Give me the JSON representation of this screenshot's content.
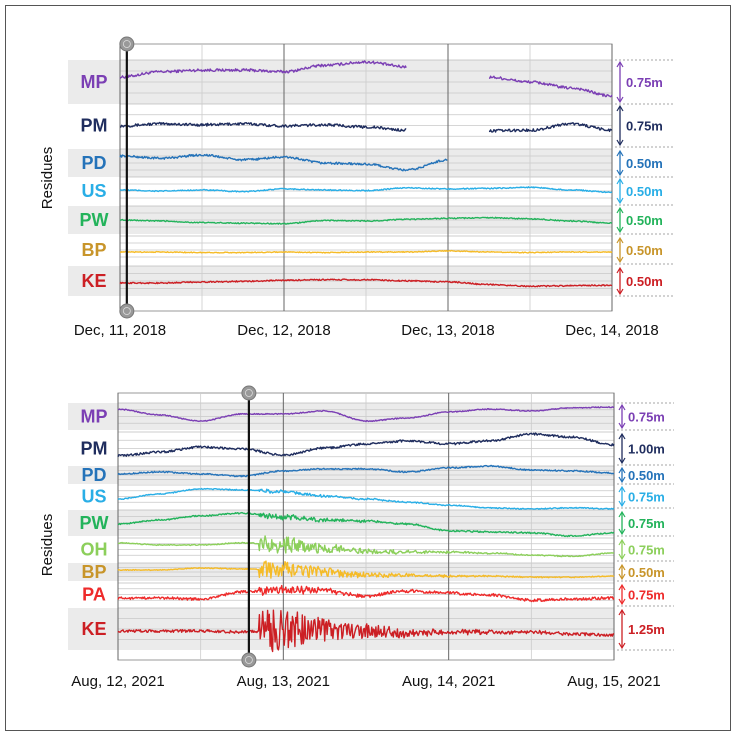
{
  "chart_data": [
    {
      "type": "line",
      "ylabel": "Residues",
      "x_ticks": [
        "Dec, 11, 2018",
        "Dec, 12, 2018",
        "Dec, 13, 2018",
        "Dec, 14, 2018"
      ],
      "sample_times": [
        "2018-12-11T00",
        "2018-12-11T06",
        "2018-12-11T12",
        "2018-12-11T18",
        "2018-12-12T00",
        "2018-12-12T06",
        "2018-12-12T12",
        "2018-12-12T18",
        "2018-12-13T00",
        "2018-12-13T06",
        "2018-12-13T12",
        "2018-12-13T18",
        "2018-12-14T00"
      ],
      "marker_time": "2018-12-11T01",
      "grid": true,
      "series": [
        {
          "name": "MP",
          "scale_label": "0.75m",
          "color": "#7b3fb4",
          "values": [
            0.09,
            0.19,
            0.22,
            0.22,
            0.19,
            0.31,
            0.37,
            0.28,
            null,
            0.09,
            0,
            -0.11,
            -0.26
          ]
        },
        {
          "name": "PM",
          "scale_label": "0.75m",
          "color": "#1f2d5e",
          "values": [
            0.02,
            0.06,
            0.04,
            0.06,
            0.02,
            0.04,
            0,
            -0.06,
            null,
            -0.07,
            -0.06,
            0.06,
            -0.06
          ]
        },
        {
          "name": "PD",
          "scale_label": "0.50m",
          "color": "#2573b9",
          "values": [
            0.11,
            0.07,
            0.13,
            0.04,
            0.09,
            -0.02,
            -0.04,
            -0.15,
            0.04,
            null,
            null,
            null,
            null
          ]
        },
        {
          "name": "US",
          "scale_label": "0.50m",
          "color": "#29aee6",
          "values": [
            0,
            -0.02,
            0,
            -0.03,
            0.02,
            0,
            -0.01,
            0.04,
            0.02,
            0.03,
            0.05,
            0,
            -0.04
          ]
        },
        {
          "name": "PW",
          "scale_label": "0.50m",
          "color": "#23b35b",
          "values": [
            0.02,
            0,
            -0.03,
            -0.04,
            -0.05,
            0.01,
            0,
            0.03,
            0.05,
            0.06,
            0.04,
            0,
            -0.04
          ]
        },
        {
          "name": "BP",
          "scale_label": "0.50m",
          "color": "#f5bb27",
          "label_color": "#c8952a",
          "values": [
            0,
            0,
            -0.01,
            -0.01,
            0,
            -0.01,
            0,
            0,
            0.02,
            0,
            -0.01,
            0,
            0
          ]
        },
        {
          "name": "KE",
          "scale_label": "0.50m",
          "color": "#cc1f24",
          "values": [
            0,
            0,
            0.02,
            0.03,
            0.05,
            0.06,
            0.06,
            0.04,
            0.02,
            -0.03,
            -0.06,
            -0.05,
            -0.04
          ]
        }
      ]
    },
    {
      "type": "line",
      "ylabel": "Residues",
      "x_ticks": [
        "Aug, 12, 2021",
        "Aug, 13, 2021",
        "Aug, 14, 2021",
        "Aug, 15, 2021"
      ],
      "sample_times": [
        "2021-08-12T00",
        "2021-08-12T06",
        "2021-08-12T12",
        "2021-08-12T18",
        "2021-08-13T00",
        "2021-08-13T06",
        "2021-08-13T12",
        "2021-08-13T18",
        "2021-08-14T00",
        "2021-08-14T06",
        "2021-08-14T12",
        "2021-08-14T18",
        "2021-08-15T00"
      ],
      "marker_time": "2021-08-12T19",
      "grid": true,
      "series": [
        {
          "name": "MP",
          "scale_label": "0.75m",
          "color": "#7b3fb4",
          "values": [
            0.2,
            0.03,
            -0.15,
            0.06,
            0.06,
            0.15,
            -0.15,
            -0.06,
            0.12,
            0.2,
            0.15,
            0.24,
            0.26
          ]
        },
        {
          "name": "PM",
          "scale_label": "1.00m",
          "color": "#1f2d5e",
          "values": [
            -0.2,
            -0.09,
            0.06,
            0,
            -0.18,
            0.03,
            0.15,
            0.24,
            0.15,
            0.24,
            0.44,
            0.35,
            0.12
          ]
        },
        {
          "name": "PD",
          "scale_label": "0.50m",
          "color": "#2573b9",
          "values": [
            0.03,
            0.09,
            0.03,
            -0.03,
            0.12,
            0.18,
            0.18,
            0.09,
            0.21,
            0.26,
            0.15,
            0.12,
            0.06
          ]
        },
        {
          "name": "US",
          "scale_label": "0.75m",
          "color": "#29aee6",
          "values": [
            -0.06,
            0.09,
            0.24,
            0.21,
            0.15,
            0.03,
            -0.06,
            -0.15,
            -0.24,
            -0.32,
            -0.35,
            -0.32,
            -0.35
          ]
        },
        {
          "name": "PW",
          "scale_label": "0.75m",
          "color": "#23b35b",
          "values": [
            -0.06,
            0.06,
            0.18,
            0.26,
            0.15,
            0.06,
            0.03,
            -0.06,
            -0.26,
            -0.29,
            -0.32,
            -0.41,
            -0.32
          ]
        },
        {
          "name": "OH",
          "scale_label": "0.75m",
          "color": "#8ccf5b",
          "values": [
            0.18,
            0.12,
            0.12,
            0.18,
            0.12,
            0.03,
            -0.06,
            -0.09,
            -0.09,
            -0.12,
            -0.18,
            -0.21,
            -0.12
          ]
        },
        {
          "name": "BP",
          "scale_label": "0.50m",
          "color": "#f5bb27",
          "label_color": "#c8952a",
          "values": [
            0.03,
            0.03,
            0.09,
            0.06,
            0.03,
            -0.03,
            -0.12,
            -0.12,
            -0.15,
            -0.15,
            -0.18,
            -0.18,
            -0.15
          ]
        },
        {
          "name": "PA",
          "scale_label": "0.75m",
          "color": "#ee2b2b",
          "values": [
            -0.12,
            -0.12,
            -0.15,
            0.06,
            0.12,
            0.09,
            -0.06,
            0.09,
            0.03,
            -0.03,
            -0.18,
            -0.15,
            -0.12
          ]
        },
        {
          "name": "KE",
          "scale_label": "1.25m",
          "color": "#cc1f24",
          "values": [
            0.03,
            0.03,
            0.03,
            0,
            0.06,
            0.06,
            0.03,
            -0.03,
            0,
            0,
            0,
            -0.06,
            -0.09
          ]
        }
      ]
    }
  ]
}
